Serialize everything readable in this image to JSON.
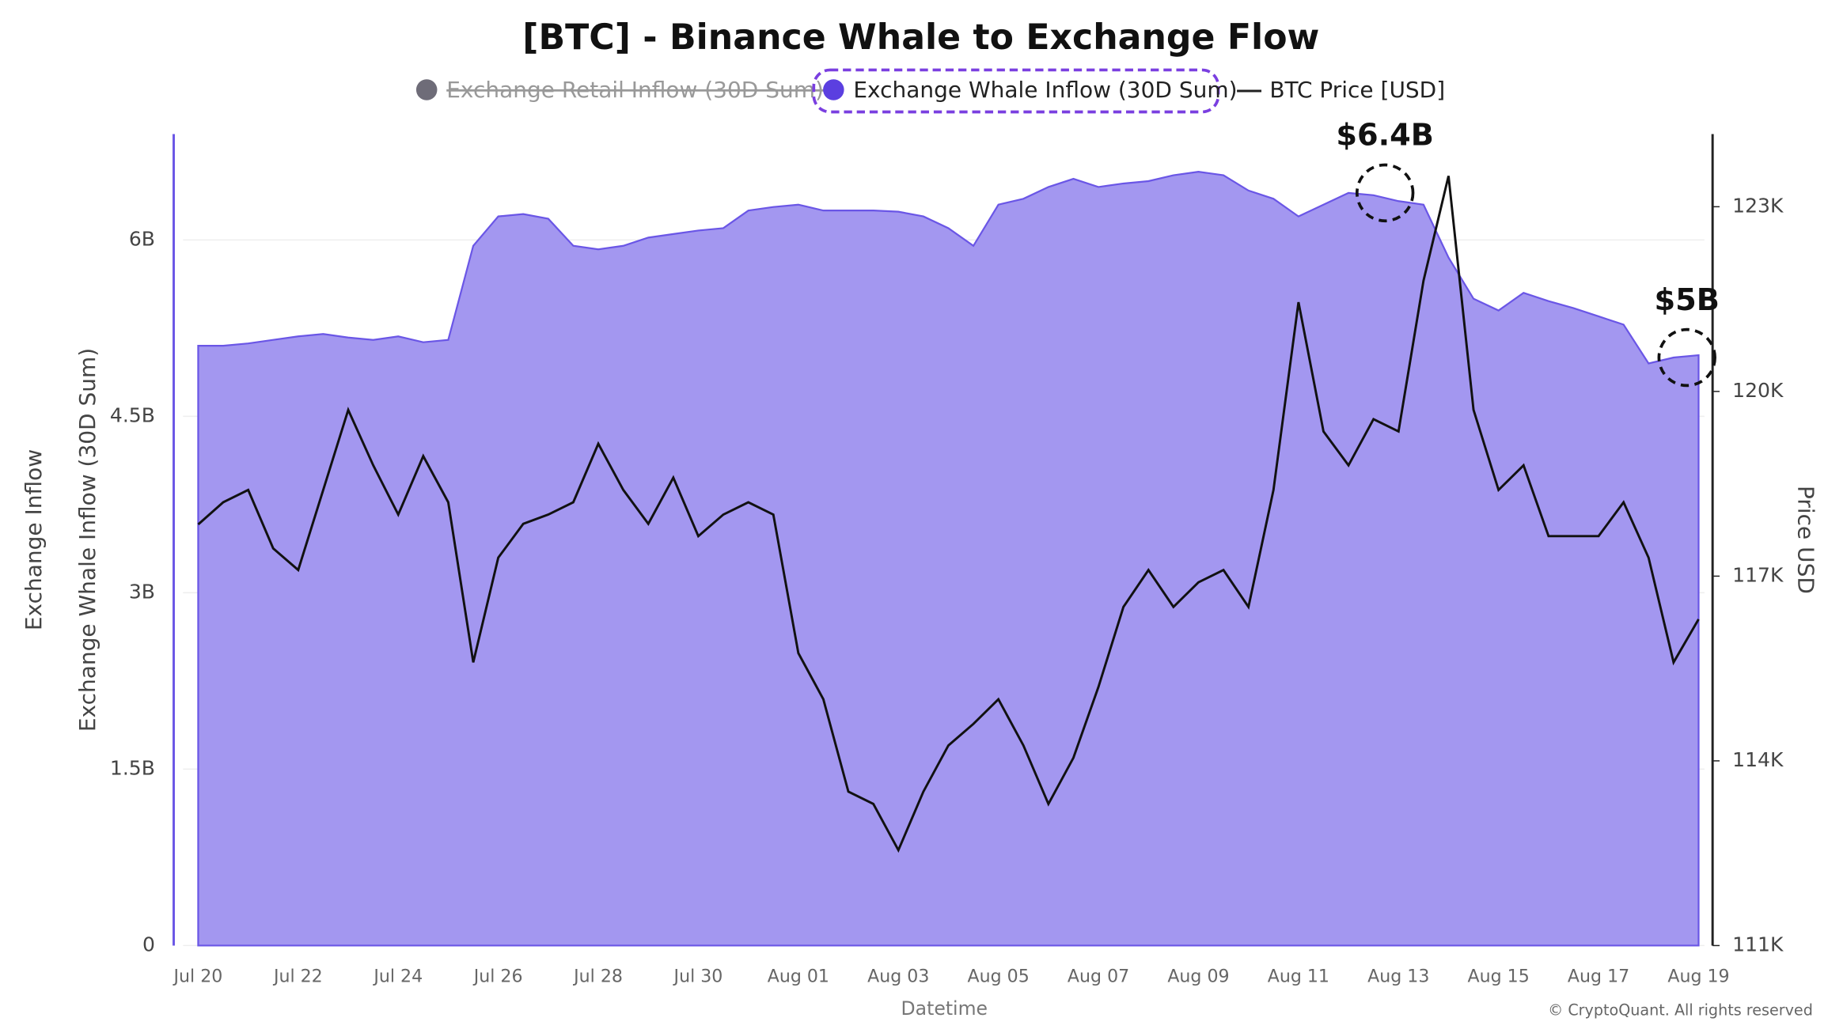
{
  "chart_data": {
    "type": "area_line",
    "title": "[BTC] - Binance Whale to Exchange Flow",
    "y_label_outer": "Exchange Inflow",
    "y_label": "Exchange Whale Inflow (30D Sum)",
    "y2_label": "Price USD",
    "x_label": "Datetime",
    "watermark": "CryptoQuant",
    "copyright": "© CryptoQuant. All rights reserved",
    "hidden_series": [
      {
        "name": "Exchange Retail Inflow (30D Sum)",
        "color": "#6e6c78"
      }
    ],
    "categories": [
      "Jul 20",
      null,
      null,
      null,
      "Jul 22",
      null,
      null,
      null,
      "Jul 24",
      null,
      null,
      null,
      "Jul 26",
      null,
      null,
      null,
      "Jul 28",
      null,
      null,
      null,
      "Jul 30",
      null,
      null,
      null,
      "Aug 01",
      null,
      null,
      null,
      "Aug 03",
      null,
      null,
      null,
      "Aug 05",
      null,
      null,
      null,
      "Aug 07",
      null,
      null,
      null,
      "Aug 09",
      null,
      null,
      null,
      "Aug 11",
      null,
      null,
      null,
      "Aug 13",
      null,
      null,
      null,
      "Aug 15",
      null,
      null,
      null,
      "Aug 17",
      null,
      null,
      null,
      "Aug 19"
    ],
    "series": [
      {
        "name": "Exchange Whale Inflow (30D Sum)",
        "color": "#a397f0",
        "legend_color": "#5b3fe0",
        "values": [
          5.1,
          5.1,
          5.12,
          5.15,
          5.18,
          5.2,
          5.17,
          5.15,
          5.18,
          5.13,
          5.15,
          5.95,
          6.2,
          6.22,
          6.18,
          5.95,
          5.92,
          5.95,
          6.02,
          6.05,
          6.08,
          6.1,
          6.25,
          6.28,
          6.3,
          6.25,
          6.25,
          6.25,
          6.24,
          6.2,
          6.1,
          5.95,
          6.3,
          6.35,
          6.45,
          6.52,
          6.45,
          6.48,
          6.5,
          6.55,
          6.58,
          6.55,
          6.42,
          6.35,
          6.2,
          6.3,
          6.4,
          6.38,
          6.33,
          6.3,
          5.85,
          5.5,
          5.4,
          5.55,
          5.48,
          5.42,
          5.35,
          5.28,
          4.95,
          5.0,
          5.02
        ]
      },
      {
        "name": "BTC Price [USD]",
        "color": "#111111",
        "axis": "y2",
        "values": [
          117840,
          118200,
          118400,
          117450,
          117100,
          118400,
          119700,
          118800,
          118000,
          118950,
          118200,
          115600,
          117300,
          117850,
          118000,
          118200,
          119150,
          118400,
          117850,
          118600,
          117650,
          118000,
          118200,
          118000,
          115750,
          115000,
          113500,
          113300,
          112550,
          113500,
          114250,
          114600,
          115000,
          114250,
          113300,
          114050,
          115200,
          116500,
          117100,
          116500,
          116900,
          117100,
          116500,
          118400,
          121450,
          119350,
          118800,
          119550,
          119350,
          121800,
          123500,
          119700,
          118400,
          118800,
          117650,
          117650,
          117650,
          118200,
          117300,
          115600,
          116300
        ]
      }
    ],
    "ylim": [
      0,
      6.9
    ],
    "yticks": [
      0,
      {
        "value": 1.5,
        "label": "1.5B"
      },
      {
        "value": 3,
        "label": "3B"
      },
      {
        "value": 4.5,
        "label": "4.5B"
      },
      {
        "value": 6,
        "label": "6B"
      }
    ],
    "y2lim": [
      111000,
      124180
    ],
    "y2ticks": [
      {
        "value": 111000,
        "label": "111K"
      },
      {
        "value": 114000,
        "label": "114K"
      },
      {
        "value": 117000,
        "label": "117K"
      },
      {
        "value": 120000,
        "label": "120K"
      },
      {
        "value": 123000,
        "label": "123K"
      }
    ],
    "annotations": [
      {
        "text": "$6.4B",
        "value": 6.4
      },
      {
        "text": "$5B",
        "value": 5
      }
    ]
  }
}
